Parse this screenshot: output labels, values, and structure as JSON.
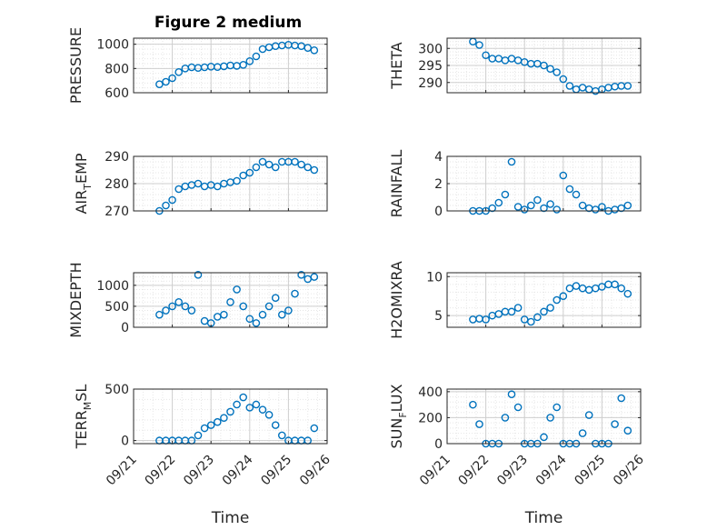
{
  "figure": {
    "title": "Figure 2 medium"
  },
  "colors": {
    "marker": "#0072BD",
    "axis": "#262626",
    "grid": "#cfcfcf",
    "minor_grid": "#e6e6e6"
  },
  "chart_data": [
    {
      "type": "scatter",
      "ylabel": "PRESSURE",
      "ylim": [
        600,
        1050
      ],
      "yticks": [
        600,
        800,
        1000
      ],
      "ytick_labels": [
        "600",
        "800",
        "1000"
      ],
      "x": [
        "09/21 16:00",
        "09/21 20:00",
        "09/22 00:00",
        "09/22 04:00",
        "09/22 08:00",
        "09/22 12:00",
        "09/22 16:00",
        "09/22 20:00",
        "09/23 00:00",
        "09/23 04:00",
        "09/23 08:00",
        "09/23 12:00",
        "09/23 16:00",
        "09/23 20:00",
        "09/24 00:00",
        "09/24 04:00",
        "09/24 08:00",
        "09/24 12:00",
        "09/24 16:00",
        "09/24 20:00",
        "09/25 00:00",
        "09/25 04:00",
        "09/25 08:00",
        "09/25 12:00",
        "09/25 16:00"
      ],
      "y": [
        670,
        690,
        720,
        770,
        800,
        810,
        805,
        810,
        815,
        812,
        818,
        825,
        822,
        830,
        860,
        900,
        960,
        975,
        985,
        990,
        995,
        990,
        985,
        970,
        950
      ]
    },
    {
      "type": "scatter",
      "ylabel": "THETA",
      "ylim": [
        287,
        303
      ],
      "yticks": [
        290,
        295,
        300
      ],
      "ytick_labels": [
        "290",
        "295",
        "300"
      ],
      "x": [
        "09/21 16:00",
        "09/21 20:00",
        "09/22 00:00",
        "09/22 04:00",
        "09/22 08:00",
        "09/22 12:00",
        "09/22 16:00",
        "09/22 20:00",
        "09/23 00:00",
        "09/23 04:00",
        "09/23 08:00",
        "09/23 12:00",
        "09/23 16:00",
        "09/23 20:00",
        "09/24 00:00",
        "09/24 04:00",
        "09/24 08:00",
        "09/24 12:00",
        "09/24 16:00",
        "09/24 20:00",
        "09/25 00:00",
        "09/25 04:00",
        "09/25 08:00",
        "09/25 12:00",
        "09/25 16:00"
      ],
      "y": [
        302,
        301,
        298,
        297,
        297,
        296.5,
        297,
        296.5,
        296,
        295.5,
        295.5,
        295,
        294,
        293,
        291,
        289,
        288,
        288.5,
        288,
        287.5,
        288,
        288.5,
        288.8,
        289,
        289
      ]
    },
    {
      "type": "scatter",
      "ylabel": "AIR_TEMP",
      "ylabel_main": "AIR",
      "ylabel_sub": "T",
      "ylabel_rest": "EMP",
      "ylim": [
        270,
        290
      ],
      "yticks": [
        270,
        280,
        290
      ],
      "ytick_labels": [
        "270",
        "280",
        "290"
      ],
      "x": [
        "09/21 16:00",
        "09/21 20:00",
        "09/22 00:00",
        "09/22 04:00",
        "09/22 08:00",
        "09/22 12:00",
        "09/22 16:00",
        "09/22 20:00",
        "09/23 00:00",
        "09/23 04:00",
        "09/23 08:00",
        "09/23 12:00",
        "09/23 16:00",
        "09/23 20:00",
        "09/24 00:00",
        "09/24 04:00",
        "09/24 08:00",
        "09/24 12:00",
        "09/24 16:00",
        "09/24 20:00",
        "09/25 00:00",
        "09/25 04:00",
        "09/25 08:00",
        "09/25 12:00",
        "09/25 16:00"
      ],
      "y": [
        270,
        272,
        274,
        278,
        279,
        279.5,
        280,
        279,
        279.5,
        279,
        280,
        280.5,
        281,
        283,
        284,
        286,
        288,
        287,
        286,
        288,
        288,
        288,
        287,
        286,
        285
      ]
    },
    {
      "type": "scatter",
      "ylabel": "RAINFALL",
      "ylim": [
        0,
        4
      ],
      "yticks": [
        0,
        2,
        4
      ],
      "ytick_labels": [
        "0",
        "2",
        "4"
      ],
      "x": [
        "09/21 16:00",
        "09/21 20:00",
        "09/22 00:00",
        "09/22 04:00",
        "09/22 08:00",
        "09/22 12:00",
        "09/22 16:00",
        "09/22 20:00",
        "09/23 00:00",
        "09/23 04:00",
        "09/23 08:00",
        "09/23 12:00",
        "09/23 16:00",
        "09/23 20:00",
        "09/24 00:00",
        "09/24 04:00",
        "09/24 08:00",
        "09/24 12:00",
        "09/24 16:00",
        "09/24 20:00",
        "09/25 00:00",
        "09/25 04:00",
        "09/25 08:00",
        "09/25 12:00",
        "09/25 16:00"
      ],
      "y": [
        0,
        0,
        0,
        0.2,
        0.6,
        1.2,
        3.6,
        0.3,
        0.1,
        0.4,
        0.8,
        0.2,
        0.5,
        0.1,
        2.6,
        1.6,
        1.2,
        0.4,
        0.2,
        0.1,
        0.3,
        0,
        0.1,
        0.2,
        0.4
      ]
    },
    {
      "type": "scatter",
      "ylabel": "MIXDEPTH",
      "ylim": [
        0,
        1300
      ],
      "yticks": [
        0,
        500,
        1000
      ],
      "ytick_labels": [
        "0",
        "500",
        "1000"
      ],
      "x": [
        "09/21 16:00",
        "09/21 20:00",
        "09/22 00:00",
        "09/22 04:00",
        "09/22 08:00",
        "09/22 12:00",
        "09/22 16:00",
        "09/22 20:00",
        "09/23 00:00",
        "09/23 04:00",
        "09/23 08:00",
        "09/23 12:00",
        "09/23 16:00",
        "09/23 20:00",
        "09/24 00:00",
        "09/24 04:00",
        "09/24 08:00",
        "09/24 12:00",
        "09/24 16:00",
        "09/24 20:00",
        "09/25 00:00",
        "09/25 04:00",
        "09/25 08:00",
        "09/25 12:00",
        "09/25 16:00"
      ],
      "y": [
        300,
        400,
        500,
        600,
        500,
        400,
        1250,
        150,
        100,
        250,
        300,
        600,
        900,
        500,
        200,
        100,
        300,
        500,
        700,
        300,
        400,
        800,
        1250,
        1150,
        1200
      ]
    },
    {
      "type": "scatter",
      "ylabel": "H2OMIXRA",
      "ylim": [
        3.5,
        10.5
      ],
      "yticks": [
        5,
        10
      ],
      "ytick_labels": [
        "5",
        "10"
      ],
      "x": [
        "09/21 16:00",
        "09/21 20:00",
        "09/22 00:00",
        "09/22 04:00",
        "09/22 08:00",
        "09/22 12:00",
        "09/22 16:00",
        "09/22 20:00",
        "09/23 00:00",
        "09/23 04:00",
        "09/23 08:00",
        "09/23 12:00",
        "09/23 16:00",
        "09/23 20:00",
        "09/24 00:00",
        "09/24 04:00",
        "09/24 08:00",
        "09/24 12:00",
        "09/24 16:00",
        "09/24 20:00",
        "09/25 00:00",
        "09/25 04:00",
        "09/25 08:00",
        "09/25 12:00",
        "09/25 16:00"
      ],
      "y": [
        4.5,
        4.6,
        4.5,
        5,
        5.2,
        5.5,
        5.5,
        6,
        4.5,
        4.2,
        4.8,
        5.5,
        6,
        7,
        7.5,
        8.5,
        8.8,
        8.5,
        8.3,
        8.5,
        8.7,
        9,
        9,
        8.5,
        7.8
      ]
    },
    {
      "type": "scatter",
      "ylabel": "TERR_MSL",
      "ylabel_main": "TERR",
      "ylabel_sub": "M",
      "ylabel_rest": "SL",
      "ylim": [
        -30,
        500
      ],
      "yticks": [
        0,
        500
      ],
      "ytick_labels": [
        "0",
        "500"
      ],
      "x": [
        "09/21 16:00",
        "09/21 20:00",
        "09/22 00:00",
        "09/22 04:00",
        "09/22 08:00",
        "09/22 12:00",
        "09/22 16:00",
        "09/22 20:00",
        "09/23 00:00",
        "09/23 04:00",
        "09/23 08:00",
        "09/23 12:00",
        "09/23 16:00",
        "09/23 20:00",
        "09/24 00:00",
        "09/24 04:00",
        "09/24 08:00",
        "09/24 12:00",
        "09/24 16:00",
        "09/24 20:00",
        "09/25 00:00",
        "09/25 04:00",
        "09/25 08:00",
        "09/25 12:00",
        "09/25 16:00"
      ],
      "y": [
        0,
        0,
        0,
        0,
        0,
        0,
        50,
        120,
        150,
        180,
        220,
        280,
        350,
        420,
        320,
        350,
        300,
        250,
        150,
        50,
        0,
        0,
        0,
        0,
        120
      ]
    },
    {
      "type": "scatter",
      "ylabel": "SUN_FLUX",
      "ylabel_main": "SUN",
      "ylabel_sub": "F",
      "ylabel_rest": "LUX",
      "ylim": [
        0,
        420
      ],
      "yticks": [
        0,
        200,
        400
      ],
      "ytick_labels": [
        "0",
        "200",
        "400"
      ],
      "x": [
        "09/21 16:00",
        "09/21 20:00",
        "09/22 00:00",
        "09/22 04:00",
        "09/22 08:00",
        "09/22 12:00",
        "09/22 16:00",
        "09/22 20:00",
        "09/23 00:00",
        "09/23 04:00",
        "09/23 08:00",
        "09/23 12:00",
        "09/23 16:00",
        "09/23 20:00",
        "09/24 00:00",
        "09/24 04:00",
        "09/24 08:00",
        "09/24 12:00",
        "09/24 16:00",
        "09/24 20:00",
        "09/25 00:00",
        "09/25 04:00",
        "09/25 08:00",
        "09/25 12:00",
        "09/25 16:00"
      ],
      "y": [
        300,
        150,
        0,
        0,
        0,
        200,
        380,
        280,
        0,
        0,
        0,
        50,
        200,
        280,
        0,
        0,
        0,
        80,
        220,
        0,
        0,
        0,
        150,
        350,
        100
      ]
    }
  ],
  "x_axis": {
    "label": "Time",
    "range": [
      "09/21 00:00",
      "09/26 00:00"
    ],
    "ticks": [
      "09/21 00:00",
      "09/22 00:00",
      "09/23 00:00",
      "09/24 00:00",
      "09/25 00:00",
      "09/26 00:00"
    ],
    "tick_labels": [
      "09/21",
      "09/22",
      "09/23",
      "09/24",
      "09/25",
      "09/26"
    ]
  }
}
